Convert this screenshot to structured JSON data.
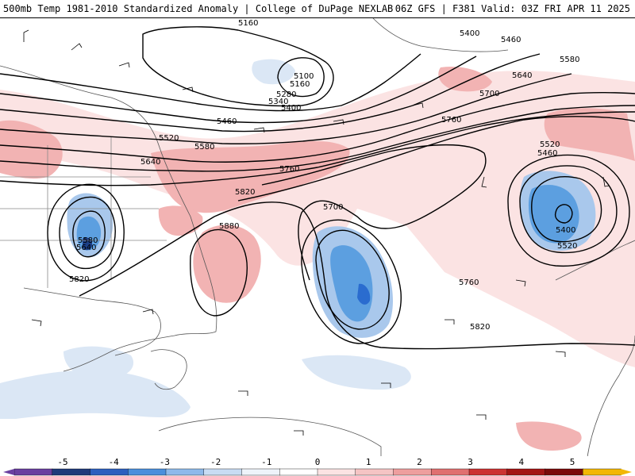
{
  "header": {
    "title": "500mb Temp 1981-2010 Standardized Anomaly | College of DuPage NEXLAB",
    "run_info": "06Z GFS | F381 Valid: 03Z FRI APR 11 2025"
  },
  "colors": {
    "warm_light": "#fbe3e3",
    "warm_mid": "#f2b3b3",
    "warm_strong": "#e88a8a",
    "cold_light": "#dbe7f5",
    "cold_mid": "#a9c8ec",
    "cold_strong": "#5c9fe0",
    "cold_core": "#2a6ccf",
    "cold_deep": "#1c3f86",
    "land_border": "#555555",
    "contour": "#000000"
  },
  "contour_labels": [
    {
      "id": "c5160a",
      "text": "5160"
    },
    {
      "id": "c5100",
      "text": "5100"
    },
    {
      "id": "c5160b",
      "text": "5160"
    },
    {
      "id": "c5280",
      "text": "5280"
    },
    {
      "id": "c5340",
      "text": "5340"
    },
    {
      "id": "c5400a",
      "text": "5400"
    },
    {
      "id": "c5400b",
      "text": "5400"
    },
    {
      "id": "c5460a",
      "text": "5460"
    },
    {
      "id": "c5460b",
      "text": "5460"
    },
    {
      "id": "c5520a",
      "text": "5520"
    },
    {
      "id": "c5580a",
      "text": "5580"
    },
    {
      "id": "c5580b",
      "text": "5580"
    },
    {
      "id": "c5640a",
      "text": "5640"
    },
    {
      "id": "c5640b",
      "text": "5640"
    },
    {
      "id": "c5700a",
      "text": "5700"
    },
    {
      "id": "c5700b",
      "text": "5700"
    },
    {
      "id": "c5760a",
      "text": "5760"
    },
    {
      "id": "c5760b",
      "text": "5760"
    },
    {
      "id": "c5760c",
      "text": "5760"
    },
    {
      "id": "c5820a",
      "text": "5820"
    },
    {
      "id": "c5820b",
      "text": "5820"
    },
    {
      "id": "c5820c",
      "text": "5820"
    },
    {
      "id": "c5880",
      "text": "5880"
    },
    {
      "id": "c5580c",
      "text": "5580"
    },
    {
      "id": "c5640c",
      "text": "5640"
    },
    {
      "id": "c5520b",
      "text": "5520"
    },
    {
      "id": "c5460c",
      "text": "5460"
    },
    {
      "id": "c5400c",
      "text": "5400"
    },
    {
      "id": "c5520c",
      "text": "5520"
    }
  ],
  "colorbar": {
    "ticks": [
      "-5",
      "-4",
      "-3",
      "-2",
      "-1",
      "0",
      "1",
      "2",
      "3",
      "4",
      "5"
    ],
    "segments": [
      "#6a3fa0",
      "#1f3a7a",
      "#2c5fbe",
      "#4a8fdc",
      "#8db9ea",
      "#c8dcf3",
      "#eef3fa",
      "#ffffff",
      "#fbe3e3",
      "#f5c4c4",
      "#ee9e9e",
      "#e07070",
      "#cc3333",
      "#a31515",
      "#7a0a0a",
      "#f2b705"
    ]
  }
}
